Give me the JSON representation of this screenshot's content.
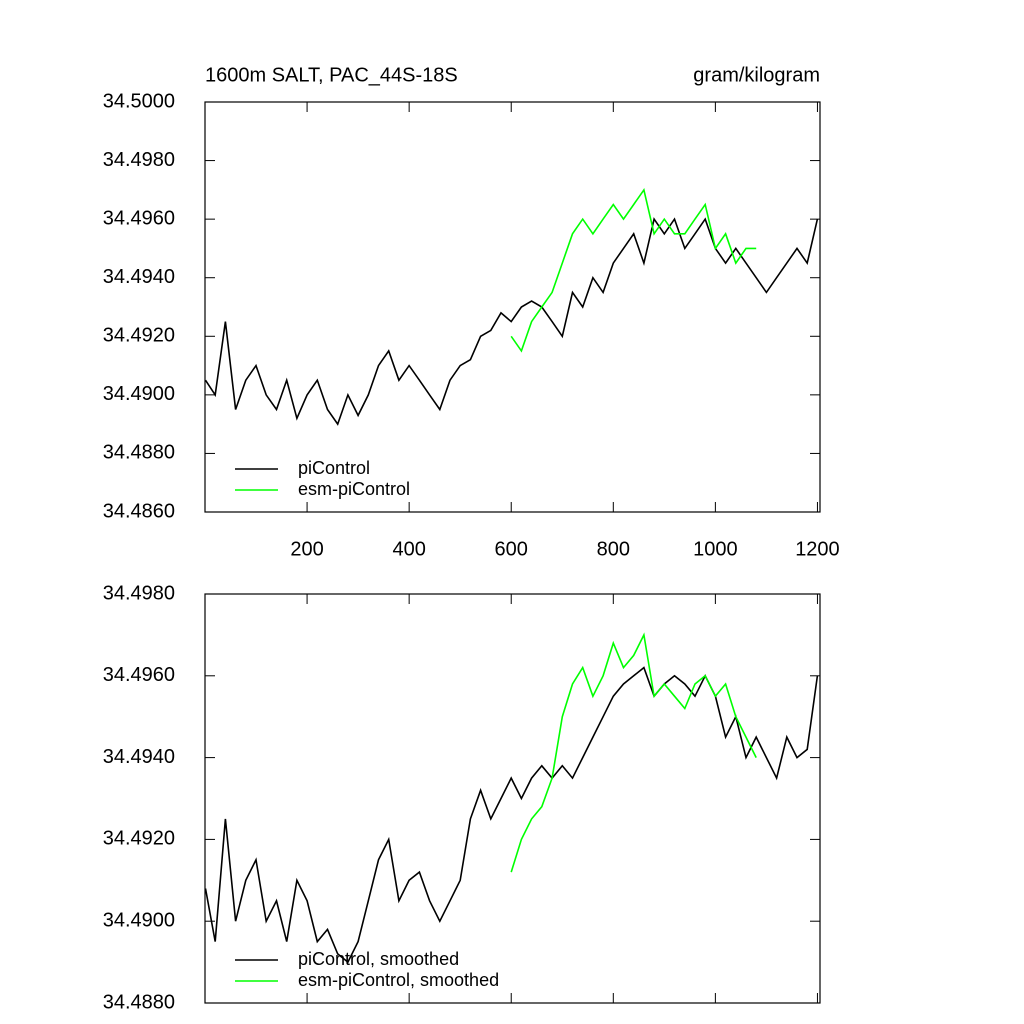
{
  "chart_data": [
    {
      "type": "line",
      "title": "1600m SALT, PAC_44S-18S",
      "units": "gram/kilogram",
      "xlim": [
        0,
        1205
      ],
      "xticks": [
        200,
        400,
        600,
        800,
        1000,
        1200
      ],
      "xtick_labels": true,
      "ylim": [
        34.486,
        34.5
      ],
      "yticks": [
        {
          "value": 34.486,
          "label": "34.4860"
        },
        {
          "value": 34.488,
          "label": "34.4880"
        },
        {
          "value": 34.49,
          "label": "34.4900"
        },
        {
          "value": 34.492,
          "label": "34.4920"
        },
        {
          "value": 34.494,
          "label": "34.4940"
        },
        {
          "value": 34.496,
          "label": "34.4960"
        },
        {
          "value": 34.498,
          "label": "34.4980"
        },
        {
          "value": 34.5,
          "label": "34.5000"
        }
      ],
      "legend": "lower left",
      "series": [
        {
          "name": "piControl",
          "color": "#000000",
          "x": [
            1,
            20,
            40,
            60,
            80,
            100,
            120,
            140,
            160,
            180,
            200,
            220,
            240,
            260,
            280,
            300,
            320,
            340,
            360,
            380,
            400,
            420,
            440,
            460,
            480,
            500,
            520,
            540,
            560,
            580,
            600,
            620,
            640,
            660,
            680,
            700,
            720,
            740,
            760,
            780,
            800,
            820,
            840,
            860,
            880,
            900,
            920,
            940,
            960,
            980,
            1000,
            1020,
            1040,
            1060,
            1080,
            1100,
            1120,
            1140,
            1160,
            1180,
            1200
          ],
          "values": [
            34.4905,
            34.49,
            34.4925,
            34.4895,
            34.4905,
            34.491,
            34.49,
            34.4895,
            34.4905,
            34.4892,
            34.49,
            34.4905,
            34.4895,
            34.489,
            34.49,
            34.4893,
            34.49,
            34.491,
            34.4915,
            34.4905,
            34.491,
            34.4905,
            34.49,
            34.4895,
            34.4905,
            34.491,
            34.4912,
            34.492,
            34.4922,
            34.4928,
            34.4925,
            34.493,
            34.4932,
            34.493,
            34.4925,
            34.492,
            34.4935,
            34.493,
            34.494,
            34.4935,
            34.4945,
            34.495,
            34.4955,
            34.4945,
            34.496,
            34.4955,
            34.496,
            34.495,
            34.4955,
            34.496,
            34.495,
            34.4945,
            34.495,
            34.4945,
            34.494,
            34.4935,
            34.494,
            34.4945,
            34.495,
            34.4945,
            34.496
          ]
        },
        {
          "name": "esm-piControl",
          "color": "#00ff00",
          "x": [
            600,
            620,
            640,
            660,
            680,
            700,
            720,
            740,
            760,
            780,
            800,
            820,
            840,
            860,
            880,
            900,
            920,
            940,
            960,
            980,
            1000,
            1020,
            1040,
            1060,
            1080
          ],
          "values": [
            34.492,
            34.4915,
            34.4925,
            34.493,
            34.4935,
            34.4945,
            34.4955,
            34.496,
            34.4955,
            34.496,
            34.4965,
            34.496,
            34.4965,
            34.497,
            34.4955,
            34.496,
            34.4955,
            34.4955,
            34.496,
            34.4965,
            34.495,
            34.4955,
            34.4945,
            34.495,
            34.495
          ]
        }
      ]
    },
    {
      "type": "line",
      "xlim": [
        0,
        1205
      ],
      "xticks": [
        200,
        400,
        600,
        800,
        1000,
        1200
      ],
      "xtick_labels": false,
      "ylim": [
        34.488,
        34.498
      ],
      "yticks": [
        {
          "value": 34.488,
          "label": "34.4880"
        },
        {
          "value": 34.49,
          "label": "34.4900"
        },
        {
          "value": 34.492,
          "label": "34.4920"
        },
        {
          "value": 34.494,
          "label": "34.4940"
        },
        {
          "value": 34.496,
          "label": "34.4960"
        },
        {
          "value": 34.498,
          "label": "34.4980"
        }
      ],
      "legend": "lower left",
      "series": [
        {
          "name": "piControl, smoothed",
          "color": "#000000",
          "x": [
            1,
            20,
            40,
            60,
            80,
            100,
            120,
            140,
            160,
            180,
            200,
            220,
            240,
            260,
            280,
            300,
            320,
            340,
            360,
            380,
            400,
            420,
            440,
            460,
            480,
            500,
            520,
            540,
            560,
            580,
            600,
            620,
            640,
            660,
            680,
            700,
            720,
            740,
            760,
            780,
            800,
            820,
            840,
            860,
            880,
            900,
            920,
            940,
            960,
            980,
            1000,
            1020,
            1040,
            1060,
            1080,
            1100,
            1120,
            1140,
            1160,
            1180,
            1200
          ],
          "values": [
            34.4908,
            34.4895,
            34.4925,
            34.49,
            34.491,
            34.4915,
            34.49,
            34.4905,
            34.4895,
            34.491,
            34.4905,
            34.4895,
            34.4898,
            34.4892,
            34.489,
            34.4895,
            34.4905,
            34.4915,
            34.492,
            34.4905,
            34.491,
            34.4912,
            34.4905,
            34.49,
            34.4905,
            34.491,
            34.4925,
            34.4932,
            34.4925,
            34.493,
            34.4935,
            34.493,
            34.4935,
            34.4938,
            34.4935,
            34.4938,
            34.4935,
            34.494,
            34.4945,
            34.495,
            34.4955,
            34.4958,
            34.496,
            34.4962,
            34.4955,
            34.4958,
            34.496,
            34.4958,
            34.4955,
            34.496,
            34.4955,
            34.4945,
            34.495,
            34.494,
            34.4945,
            34.494,
            34.4935,
            34.4945,
            34.494,
            34.4942,
            34.496
          ]
        },
        {
          "name": "esm-piControl, smoothed",
          "color": "#00ff00",
          "x": [
            600,
            620,
            640,
            660,
            680,
            700,
            720,
            740,
            760,
            780,
            800,
            820,
            840,
            860,
            880,
            900,
            920,
            940,
            960,
            980,
            1000,
            1020,
            1040,
            1060,
            1080
          ],
          "values": [
            34.4912,
            34.492,
            34.4925,
            34.4928,
            34.4935,
            34.495,
            34.4958,
            34.4962,
            34.4955,
            34.496,
            34.4968,
            34.4962,
            34.4965,
            34.497,
            34.4955,
            34.4958,
            34.4955,
            34.4952,
            34.4958,
            34.496,
            34.4955,
            34.4958,
            34.495,
            34.4945,
            34.494
          ]
        }
      ]
    }
  ]
}
